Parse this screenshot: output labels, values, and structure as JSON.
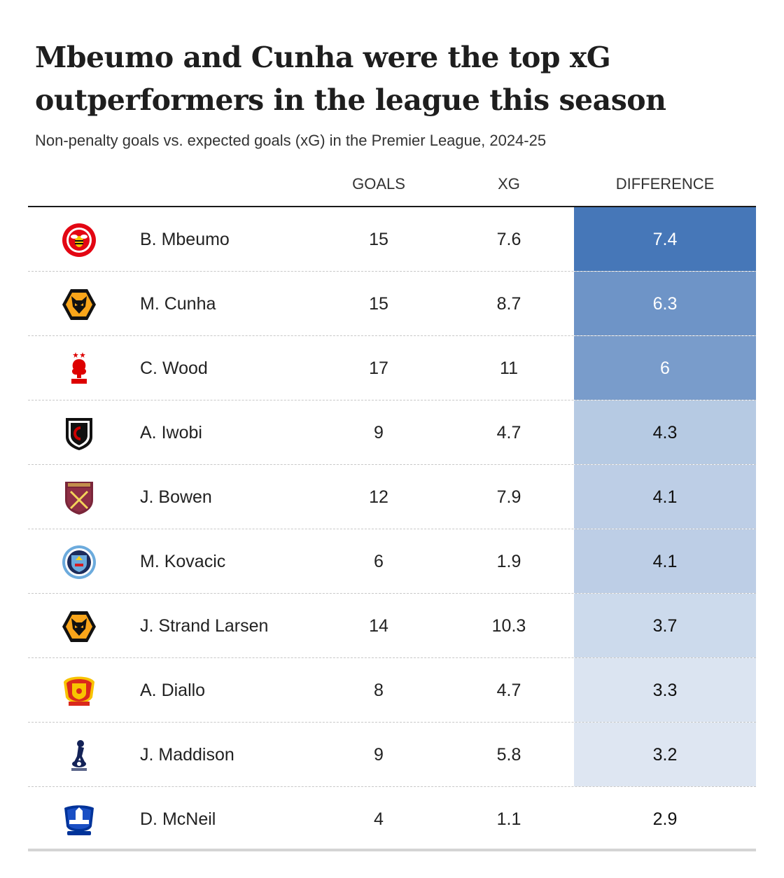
{
  "title": "Mbeumo and Cunha were the top xG outperformers in the league this season",
  "subtitle": "Non-penalty goals vs. expected goals (xG) in the Premier League, 2024-25",
  "columns": {
    "goals": "GOALS",
    "xg": "XG",
    "difference": "DIFFERENCE"
  },
  "chart_data": {
    "type": "table",
    "title": "Mbeumo and Cunha were the top xG outperformers in the league this season",
    "subtitle": "Non-penalty goals vs. expected goals (xG) in the Premier League, 2024-25",
    "columns": [
      "GOALS",
      "XG",
      "DIFFERENCE"
    ],
    "heat_color": "#4677b8",
    "rows": [
      {
        "player": "B. Mbeumo",
        "crest": "brentford-crest-icon",
        "goals": "15",
        "xg": "7.6",
        "difference": "7.4"
      },
      {
        "player": "M. Cunha",
        "crest": "wolves-crest-icon",
        "goals": "15",
        "xg": "8.7",
        "difference": "6.3"
      },
      {
        "player": "C. Wood",
        "crest": "nottingham-forest-crest-icon",
        "goals": "17",
        "xg": "11",
        "difference": "6"
      },
      {
        "player": "A. Iwobi",
        "crest": "fulham-crest-icon",
        "goals": "9",
        "xg": "4.7",
        "difference": "4.3"
      },
      {
        "player": "J. Bowen",
        "crest": "west-ham-crest-icon",
        "goals": "12",
        "xg": "7.9",
        "difference": "4.1"
      },
      {
        "player": "M. Kovacic",
        "crest": "manchester-city-crest-icon",
        "goals": "6",
        "xg": "1.9",
        "difference": "4.1"
      },
      {
        "player": "J. Strand Larsen",
        "crest": "wolves-crest-icon",
        "goals": "14",
        "xg": "10.3",
        "difference": "3.7"
      },
      {
        "player": "A. Diallo",
        "crest": "manchester-united-crest-icon",
        "goals": "8",
        "xg": "4.7",
        "difference": "3.3"
      },
      {
        "player": "J. Maddison",
        "crest": "tottenham-crest-icon",
        "goals": "9",
        "xg": "5.8",
        "difference": "3.2"
      },
      {
        "player": "D. McNeil",
        "crest": "everton-crest-icon",
        "goals": "4",
        "xg": "1.1",
        "difference": "2.9"
      }
    ]
  }
}
